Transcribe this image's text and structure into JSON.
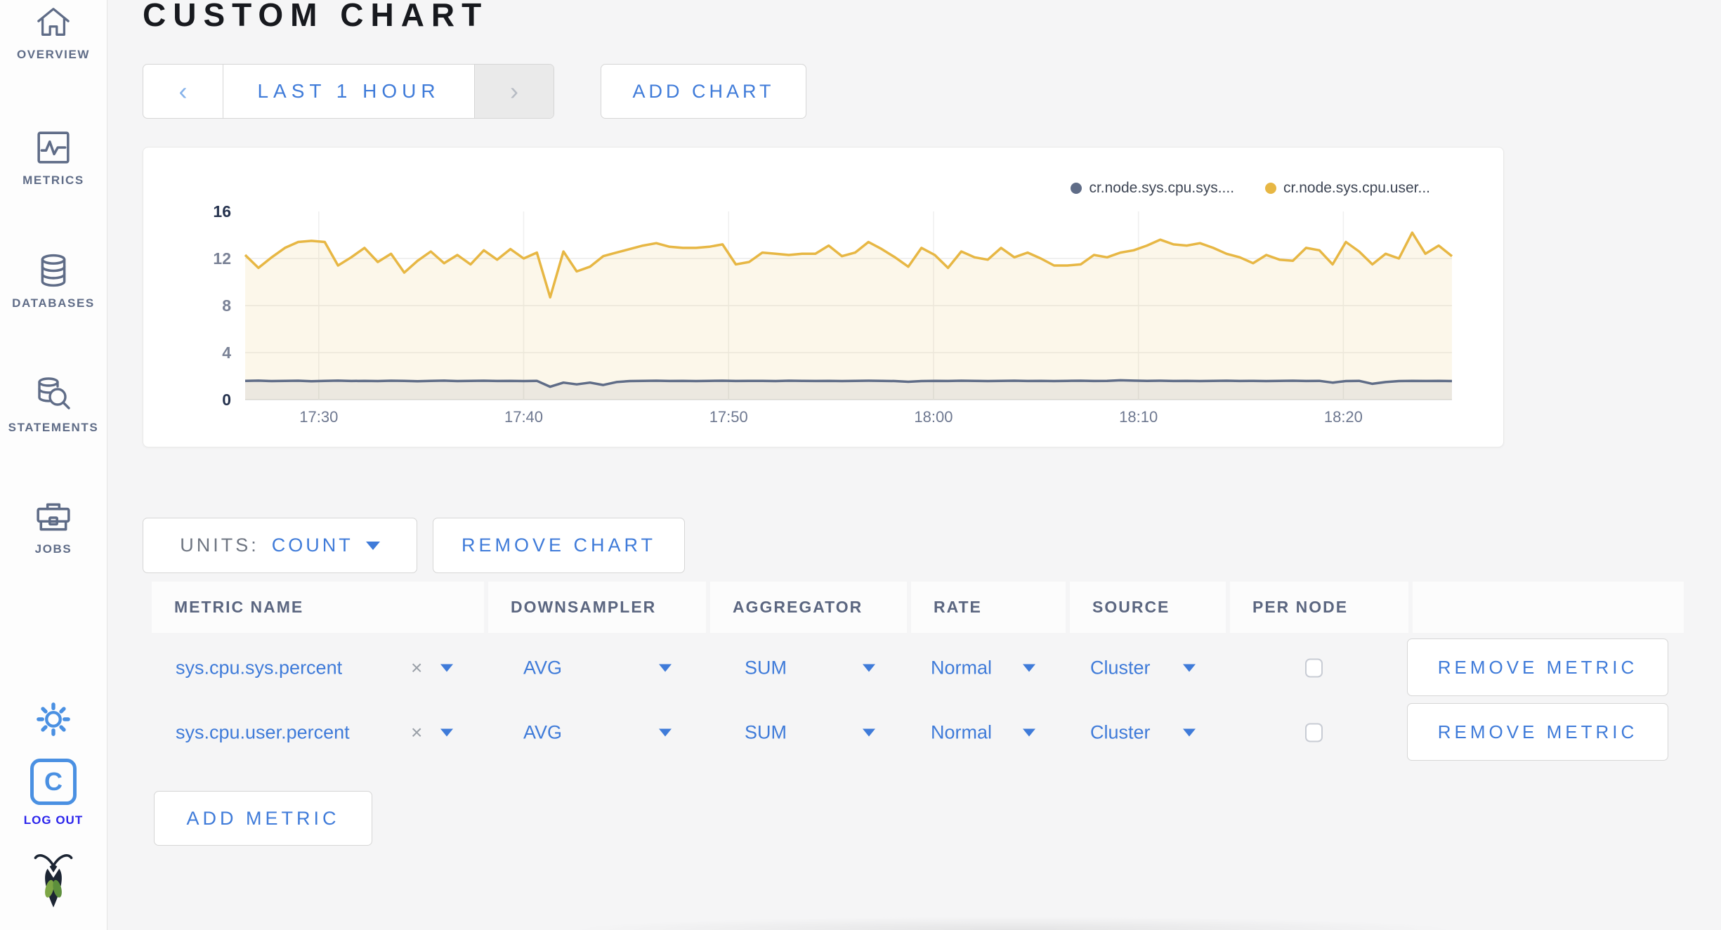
{
  "header": {
    "title": "CUSTOM CHART"
  },
  "sidebar": {
    "items": [
      {
        "label": "OVERVIEW"
      },
      {
        "label": "METRICS"
      },
      {
        "label": "DATABASES"
      },
      {
        "label": "STATEMENTS"
      },
      {
        "label": "JOBS"
      }
    ],
    "logout_label": "LOG OUT",
    "logo_letter": "C"
  },
  "toolbar": {
    "prev_icon": "‹",
    "next_icon": "›",
    "time_range": "LAST 1 HOUR",
    "add_chart": "ADD CHART"
  },
  "chart_controls": {
    "units_label": "UNITS:",
    "units_value": "COUNT",
    "remove_chart": "REMOVE CHART"
  },
  "chart_data": {
    "type": "line",
    "title": "",
    "xlabel": "",
    "ylabel": "",
    "ylim": [
      0,
      16
    ],
    "y_ticks": [
      0,
      4,
      8,
      12,
      16
    ],
    "x_ticks": [
      "17:30",
      "17:40",
      "17:50",
      "18:00",
      "18:10",
      "18:20"
    ],
    "grid": true,
    "legend_position": "top-right",
    "series": [
      {
        "name": "cr.node.sys.cpu.sys....",
        "color": "#5f6c87",
        "fill": "rgba(95,108,135,0.10)",
        "values": [
          1.6,
          1.62,
          1.58,
          1.6,
          1.61,
          1.57,
          1.6,
          1.62,
          1.59,
          1.6,
          1.58,
          1.61,
          1.6,
          1.57,
          1.6,
          1.62,
          1.58,
          1.6,
          1.61,
          1.59,
          1.6,
          1.58,
          1.6,
          1.1,
          1.45,
          1.3,
          1.45,
          1.25,
          1.5,
          1.58,
          1.6,
          1.61,
          1.59,
          1.6,
          1.58,
          1.6,
          1.61,
          1.59,
          1.6,
          1.6,
          1.58,
          1.61,
          1.6,
          1.59,
          1.6,
          1.58,
          1.6,
          1.61,
          1.6,
          1.58,
          1.52,
          1.58,
          1.6,
          1.59,
          1.61,
          1.6,
          1.58,
          1.6,
          1.61,
          1.59,
          1.6,
          1.58,
          1.6,
          1.61,
          1.59,
          1.6,
          1.65,
          1.62,
          1.6,
          1.61,
          1.59,
          1.6,
          1.58,
          1.6,
          1.61,
          1.59,
          1.6,
          1.58,
          1.6,
          1.61,
          1.59,
          1.6,
          1.45,
          1.58,
          1.6,
          1.35,
          1.5,
          1.58,
          1.6,
          1.59,
          1.6,
          1.58
        ]
      },
      {
        "name": "cr.node.sys.cpu.user...",
        "color": "#e7b744",
        "fill": "rgba(231,183,68,0.11)",
        "values": [
          12.3,
          11.2,
          12.1,
          12.9,
          13.4,
          13.5,
          13.4,
          11.4,
          12.1,
          12.9,
          11.7,
          12.4,
          10.8,
          11.8,
          12.6,
          11.6,
          12.3,
          11.5,
          12.7,
          11.9,
          12.8,
          12.0,
          12.5,
          8.7,
          12.6,
          10.9,
          11.3,
          12.2,
          12.5,
          12.8,
          13.1,
          13.3,
          13.0,
          12.9,
          12.9,
          13.0,
          13.2,
          11.5,
          11.7,
          12.5,
          12.4,
          12.3,
          12.4,
          12.4,
          13.1,
          12.2,
          12.5,
          13.4,
          12.8,
          12.1,
          11.3,
          12.9,
          12.3,
          11.2,
          12.6,
          12.1,
          11.9,
          12.9,
          12.1,
          12.5,
          12.0,
          11.4,
          11.4,
          11.5,
          12.3,
          12.1,
          12.5,
          12.7,
          13.1,
          13.6,
          13.2,
          13.1,
          13.3,
          12.9,
          12.4,
          12.1,
          11.6,
          12.3,
          11.9,
          11.8,
          12.9,
          12.7,
          11.5,
          13.4,
          12.6,
          11.5,
          12.4,
          12.0,
          14.2,
          12.4,
          13.1,
          12.2
        ]
      }
    ]
  },
  "metrics_table": {
    "columns": [
      "METRIC NAME",
      "DOWNSAMPLER",
      "AGGREGATOR",
      "RATE",
      "SOURCE",
      "PER NODE"
    ],
    "rows": [
      {
        "name": "sys.cpu.sys.percent",
        "clear_icon": "×",
        "downsampler": "AVG",
        "aggregator": "SUM",
        "rate": "Normal",
        "source": "Cluster",
        "per_node_checked": false,
        "remove_label": "REMOVE METRIC"
      },
      {
        "name": "sys.cpu.user.percent",
        "clear_icon": "×",
        "downsampler": "AVG",
        "aggregator": "SUM",
        "rate": "Normal",
        "source": "Cluster",
        "per_node_checked": false,
        "remove_label": "REMOVE METRIC"
      }
    ],
    "add_metric": "ADD METRIC"
  },
  "colors": {
    "accent_blue": "#3f7bd9",
    "icon_blue": "#4a90e2",
    "logout_blue": "#2b24ec",
    "slate": "#5f6c87",
    "series_sys": "#5f6c87",
    "series_user": "#e7b744",
    "page_bg": "#f5f5f6"
  }
}
